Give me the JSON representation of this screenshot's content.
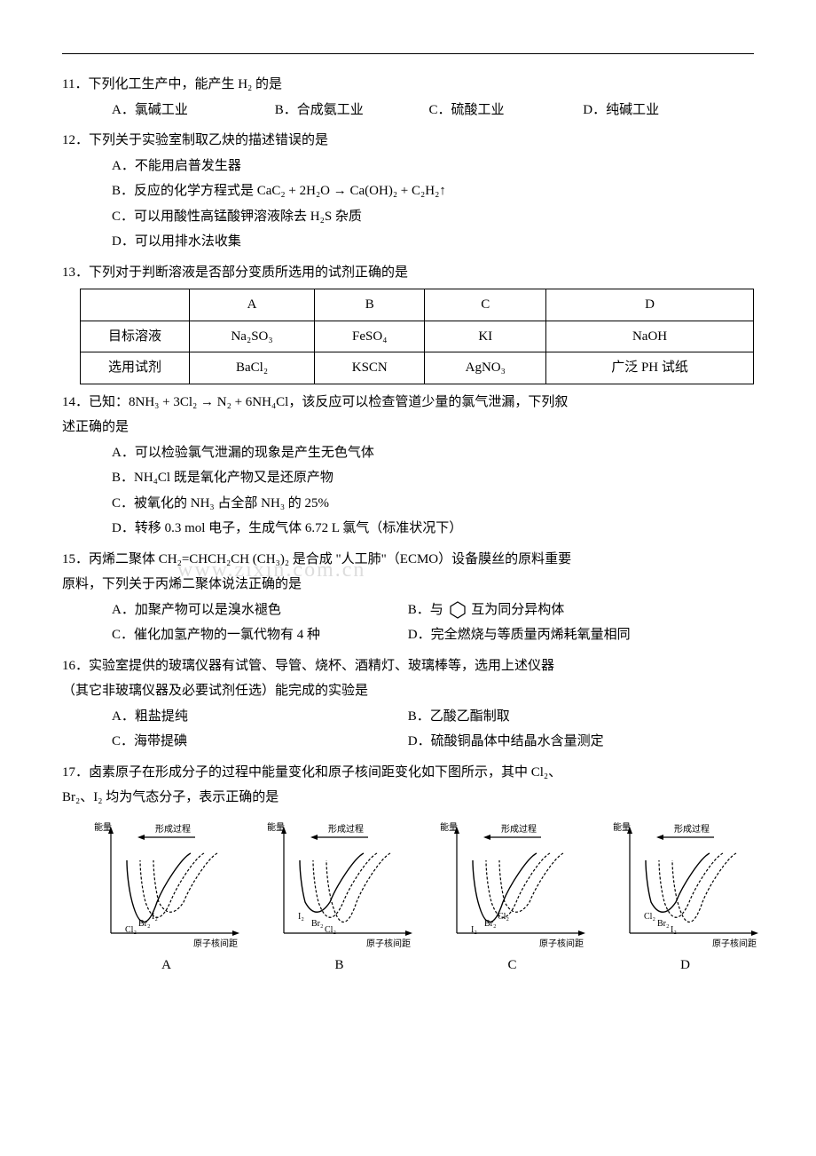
{
  "q11": {
    "stem": "11．下列化工生产中，能产生 H₂ 的是",
    "opts": {
      "A": "A．氯碱工业",
      "B": "B．合成氨工业",
      "C": "C．硫酸工业",
      "D": "D．纯碱工业"
    }
  },
  "q12": {
    "stem": "12．下列关于实验室制取乙炔的描述错误的是",
    "A": "A．不能用启普发生器",
    "B": "B．反应的化学方程式是 CaC₂ + 2H₂O → Ca(OH)₂ + C₂H₂↑",
    "C": "C．可以用酸性高锰酸钾溶液除去 H₂S 杂质",
    "D": "D．可以用排水法收集"
  },
  "q13": {
    "stem": "13．下列对于判断溶液是否部分变质所选用的试剂正确的是",
    "table": {
      "cols": [
        "",
        "A",
        "B",
        "C",
        "D"
      ],
      "rows": [
        {
          "label": "目标溶液",
          "A": "Na₂SO₃",
          "B": "FeSO₄",
          "C": "KI",
          "D": "NaOH"
        },
        {
          "label": "选用试剂",
          "A": "BaCl₂",
          "B": "KSCN",
          "C": "AgNO₃",
          "D": "广泛 PH 试纸"
        }
      ]
    }
  },
  "q14": {
    "stem1": "14．已知：8NH₃ + 3Cl₂ → N₂ + 6NH₄Cl，该反应可以检查管道少量的氯气泄漏，下列叙",
    "stem2": "述正确的是",
    "A": "A．可以检验氯气泄漏的现象是产生无色气体",
    "B": "B．NH₄Cl 既是氧化产物又是还原产物",
    "C": "C．被氧化的 NH₃ 占全部 NH₃ 的 25%",
    "D": "D．转移 0.3 mol 电子，生成气体 6.72 L 氯气（标准状况下）"
  },
  "q15": {
    "stem1": "15．丙烯二聚体 CH₂=CHCH₂CH (CH₃)₂ 是合成 \"人工肺\"（ECMO）设备膜丝的原料重要",
    "stem2": "原料，下列关于丙烯二聚体说法正确的是",
    "A": "A．加聚产物可以是溴水褪色",
    "Bpre": "B．与",
    "Bpost": "互为同分异构体",
    "C": "C．催化加氢产物的一氯代物有 4 种",
    "D": "D．完全燃烧与等质量丙烯耗氧量相同"
  },
  "q16": {
    "stem1": "16．实验室提供的玻璃仪器有试管、导管、烧杯、酒精灯、玻璃棒等，选用上述仪器",
    "stem2": "（其它非玻璃仪器及必要试剂任选）能完成的实验是",
    "A": "A．粗盐提纯",
    "B": "B．乙酸乙酯制取",
    "C": "C．海带提碘",
    "D": "D．硫酸铜晶体中结晶水含量测定"
  },
  "q17": {
    "stem1": "17．卤素原子在形成分子的过程中能量变化和原子核间距变化如下图所示，其中 Cl₂、",
    "stem2": "Br₂、I₂ 均为气态分子，表示正确的是",
    "axis_y": "能量",
    "axis_x": "原子核间距",
    "arrow_label": "形成过程",
    "labels": [
      "A",
      "B",
      "C",
      "D"
    ],
    "charts": [
      {
        "order": [
          "Cl₂",
          "Br₂",
          "I₂"
        ],
        "depths": [
          30,
          23,
          15
        ]
      },
      {
        "order": [
          "I₂",
          "Br₂",
          "Cl₂"
        ],
        "depths": [
          15,
          23,
          30
        ]
      },
      {
        "order": [
          "I₂",
          "Br₂",
          "Cl₂"
        ],
        "depths": [
          30,
          23,
          15
        ]
      },
      {
        "order": [
          "Cl₂",
          "Br₂",
          "I₂"
        ],
        "depths": [
          15,
          23,
          30
        ]
      }
    ],
    "chart_style": {
      "width": 175,
      "height": 150,
      "colors": {
        "axis": "#000000",
        "text": "#000000"
      },
      "font_size": 10
    }
  },
  "watermark": "www.zixin.com.cn"
}
